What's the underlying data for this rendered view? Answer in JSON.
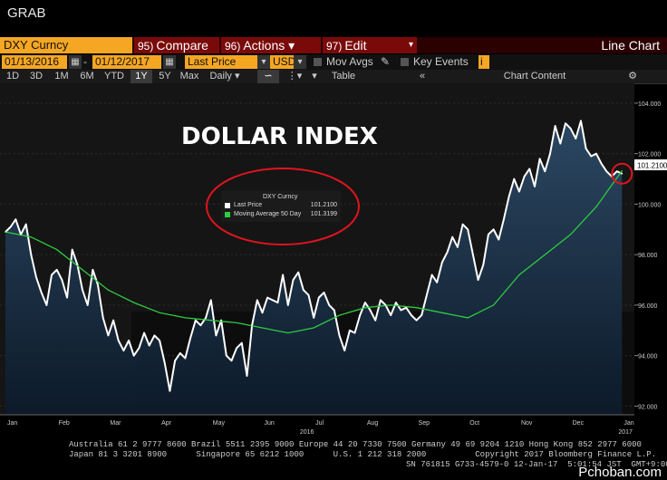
{
  "window": {
    "title": "GRAB"
  },
  "toolbar": {
    "ticker": "DXY Curncy",
    "compare_num": "95)",
    "compare_label": "Compare",
    "actions_num": "96)",
    "actions_label": "Actions ▾",
    "edit_num": "97)",
    "edit_label": "Edit",
    "view_label": "Line Chart"
  },
  "settings": {
    "start_date": "01/13/2016",
    "end_date": "01/12/2017",
    "field": "Last Price",
    "currency": "USD",
    "mov_avgs": "Mov Avgs",
    "key_events": "Key Events",
    "table": "Table",
    "chart_content": "Chart Content"
  },
  "ranges": [
    "1D",
    "3D",
    "1M",
    "6M",
    "YTD",
    "1Y",
    "5Y",
    "Max",
    "Daily ▾"
  ],
  "selected_range": "1Y",
  "legend": {
    "title": "DXY Curncy",
    "last_price_label": "Last Price",
    "last_price_value": "101.2100",
    "ma_label": "Moving Average 50 Day",
    "ma_value": "101.3199"
  },
  "annotation": "DOLLAR INDEX",
  "last_price_tag": "101.2100",
  "footer": {
    "line1": "Australia 61 2 9777 8600 Brazil 5511 2395 9000 Europe 44 20 7330 7500 Germany 49 69 9204 1210 Hong Kong 852 2977 6000",
    "line2": "Japan 81 3 3201 8900      Singapore 65 6212 1000      U.S. 1 212 318 2000          Copyright 2017 Bloomberg Finance L.P.",
    "line3": "SN 761815 G733-4579-0 12-Jan-17  5:01:54 JST  GMT+9:00",
    "watermark": "Pchoban.com"
  },
  "colors": {
    "price": "#ffffff",
    "ma": "#2ecc40",
    "fill_top": "#2d4a66",
    "fill_bottom": "#0c1a2a",
    "accent": "#f5a623",
    "circle": "#e0141e"
  },
  "chart_data": {
    "type": "line",
    "title": "DOLLAR INDEX",
    "ylim": [
      91.8,
      104.5
    ],
    "yticks": [
      92,
      94,
      96,
      98,
      100,
      102,
      104
    ],
    "ytick_labels": [
      "92.000",
      "94.000",
      "96.000",
      "98.000",
      "100.000",
      "102.000",
      "104.000"
    ],
    "xlim": [
      0,
      12.1
    ],
    "xticks": [
      0,
      1,
      2,
      3,
      4,
      5,
      6,
      7,
      8,
      9,
      10,
      11,
      12
    ],
    "xtick_labels": [
      "Jan",
      "Feb",
      "Mar",
      "Apr",
      "May",
      "Jun",
      "Jul",
      "Aug",
      "Sep",
      "Oct",
      "Nov",
      "Dec",
      "Jan"
    ],
    "year_labels": [
      {
        "x": 5.8,
        "label": "2016"
      },
      {
        "x": 12.0,
        "label": "2017"
      }
    ],
    "series": [
      {
        "name": "Last Price",
        "x": [
          0,
          0.1,
          0.2,
          0.3,
          0.4,
          0.5,
          0.6,
          0.7,
          0.8,
          0.9,
          1.0,
          1.1,
          1.2,
          1.3,
          1.4,
          1.5,
          1.6,
          1.7,
          1.8,
          1.9,
          2.0,
          2.1,
          2.2,
          2.3,
          2.4,
          2.5,
          2.6,
          2.7,
          2.8,
          2.9,
          3.0,
          3.1,
          3.2,
          3.3,
          3.4,
          3.5,
          3.6,
          3.7,
          3.8,
          3.9,
          4.0,
          4.1,
          4.2,
          4.3,
          4.4,
          4.5,
          4.6,
          4.7,
          4.8,
          4.9,
          5.0,
          5.1,
          5.2,
          5.3,
          5.4,
          5.5,
          5.6,
          5.7,
          5.8,
          5.9,
          6.0,
          6.1,
          6.2,
          6.3,
          6.4,
          6.5,
          6.6,
          6.7,
          6.8,
          6.9,
          7.0,
          7.1,
          7.2,
          7.3,
          7.4,
          7.5,
          7.6,
          7.7,
          7.8,
          7.9,
          8.0,
          8.1,
          8.2,
          8.3,
          8.4,
          8.5,
          8.6,
          8.7,
          8.8,
          8.9,
          9.0,
          9.1,
          9.2,
          9.3,
          9.4,
          9.5,
          9.6,
          9.7,
          9.8,
          9.9,
          10.0,
          10.1,
          10.2,
          10.3,
          10.4,
          10.5,
          10.6,
          10.7,
          10.8,
          10.9,
          11.0,
          11.1,
          11.2,
          11.3,
          11.4,
          11.5,
          11.6,
          11.7,
          11.8,
          11.9,
          12.0
        ],
        "values": [
          98.9,
          99.1,
          99.4,
          98.8,
          99.2,
          98.0,
          97.1,
          96.5,
          96.0,
          97.2,
          97.4,
          97.0,
          96.3,
          98.2,
          97.6,
          96.6,
          96.0,
          97.4,
          96.8,
          95.5,
          94.8,
          95.4,
          94.6,
          94.2,
          94.6,
          94.0,
          94.3,
          94.9,
          94.4,
          94.8,
          94.6,
          93.7,
          92.6,
          93.8,
          94.1,
          93.9,
          94.7,
          95.4,
          95.2,
          95.5,
          96.2,
          94.8,
          95.4,
          94.0,
          93.8,
          94.3,
          94.5,
          93.2,
          95.2,
          96.2,
          95.7,
          96.3,
          96.2,
          96.1,
          97.2,
          96.0,
          97.0,
          97.3,
          96.6,
          96.4,
          95.5,
          96.3,
          96.5,
          96.0,
          95.8,
          94.8,
          94.2,
          95.0,
          94.9,
          95.6,
          96.1,
          95.8,
          95.4,
          96.2,
          96.0,
          95.6,
          96.1,
          95.8,
          95.9,
          95.6,
          95.4,
          95.6,
          96.4,
          97.2,
          96.9,
          97.7,
          98.1,
          98.7,
          98.3,
          99.2,
          99.0,
          98.0,
          97.0,
          97.6,
          98.8,
          99.0,
          98.6,
          99.4,
          100.3,
          101.0,
          100.5,
          101.1,
          101.4,
          100.7,
          101.8,
          101.3,
          102.0,
          103.1,
          102.4,
          103.2,
          103.0,
          102.6,
          103.3,
          102.2,
          101.9,
          102.0,
          101.6,
          101.3,
          101.1,
          101.3,
          101.21
        ]
      },
      {
        "name": "Moving Average 50 Day",
        "x": [
          0,
          0.5,
          1.0,
          1.5,
          2.0,
          2.5,
          3.0,
          3.5,
          4.0,
          4.5,
          5.0,
          5.5,
          6.0,
          6.5,
          7.0,
          7.5,
          8.0,
          8.5,
          9.0,
          9.5,
          10.0,
          10.5,
          11.0,
          11.5,
          12.0
        ],
        "values": [
          98.9,
          98.7,
          98.2,
          97.4,
          96.6,
          96.1,
          95.7,
          95.5,
          95.4,
          95.3,
          95.1,
          94.9,
          95.1,
          95.6,
          95.9,
          96.0,
          95.9,
          95.7,
          95.5,
          96.0,
          97.2,
          98.0,
          98.8,
          99.9,
          101.32
        ]
      }
    ]
  }
}
